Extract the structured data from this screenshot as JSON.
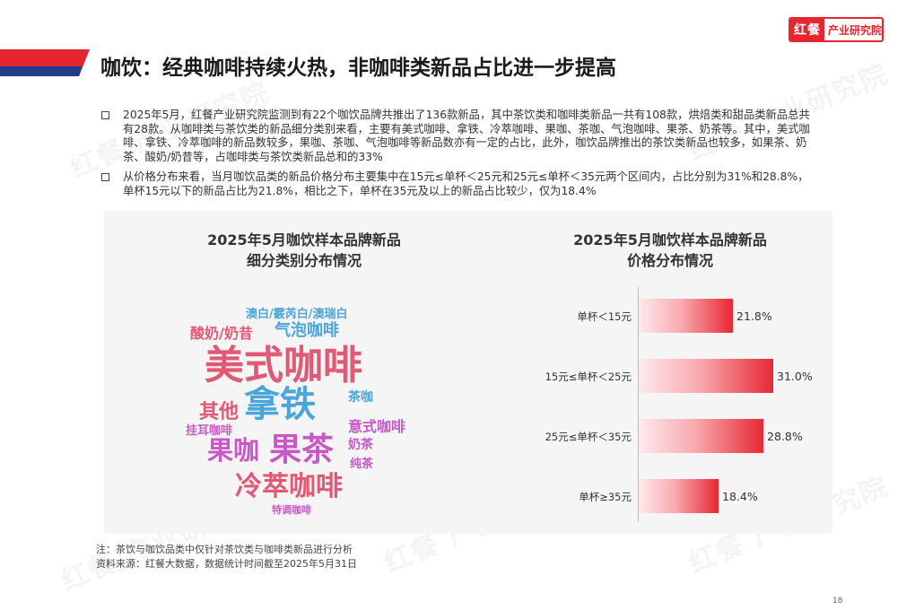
{
  "logo": {
    "brand": "红餐",
    "institute": "产业研究院"
  },
  "header": {
    "title": "咖饮：经典咖啡持续火热，非咖啡类新品占比进一步提高"
  },
  "paragraphs": [
    "2025年5月，红餐产业研究院监测到有22个咖饮品牌共推出了136款新品，其中茶饮类和咖啡类新品一共有108款，烘焙类和甜品类新品总共有28款。从咖啡类与茶饮类的新品细分类别来看，主要有美式咖啡、拿铁、冷萃咖啡、果咖、茶咖、气泡咖啡、果茶、奶茶等。其中，美式咖啡、拿铁、冷萃咖啡的新品数较多，果咖、茶咖、气泡咖啡等新品数亦有一定的占比，此外，咖饮品牌推出的茶饮类新品也较多，如果茶、奶茶、酸奶/奶昔等，占咖啡类与茶饮类新品总和的33%",
    "从价格分布来看，当月咖饮品类的新品价格分布主要集中在15元≤单杯＜25元和25元≤单杯＜35元两个区间内，占比分别为31%和28.8%，单杯15元以下的新品占比为21.8%，相比之下，单杯在35元及以上的新品占比较少，仅为18.4%"
  ],
  "wordcloud": {
    "title_line1": "2025年5月咖饮样本品牌新品",
    "title_line2": "细分类别分布情况",
    "words": [
      {
        "text": "澳白/霰芮白/澳瑞白",
        "color": "#4da6db"
      },
      {
        "text": "酸奶/奶昔",
        "color": "#e05a76"
      },
      {
        "text": "气泡咖啡",
        "color": "#4da6db"
      },
      {
        "text": "美式咖啡",
        "color": "#e05a76"
      },
      {
        "text": "拿铁",
        "color": "#4da6db"
      },
      {
        "text": "其他",
        "color": "#e05a76"
      },
      {
        "text": "茶咖",
        "color": "#4da6db"
      },
      {
        "text": "挂耳咖啡",
        "color": "#c759c7"
      },
      {
        "text": "意式咖啡",
        "color": "#c759c7"
      },
      {
        "text": "果咖",
        "color": "#c759c7"
      },
      {
        "text": "果茶",
        "color": "#c759c7"
      },
      {
        "text": "奶茶",
        "color": "#c759c7"
      },
      {
        "text": "纯茶",
        "color": "#c759c7"
      },
      {
        "text": "冷萃咖啡",
        "color": "#e05a76"
      },
      {
        "text": "特调咖啡",
        "color": "#c759c7"
      }
    ]
  },
  "chart_data": {
    "type": "bar",
    "orientation": "horizontal",
    "title_line1": "2025年5月咖饮样本品牌新品",
    "title_line2": "价格分布情况",
    "categories": [
      "单杯＜15元",
      "15元≤单杯＜25元",
      "25元≤单杯＜35元",
      "单杯≥35元"
    ],
    "values": [
      21.8,
      31.0,
      28.8,
      18.4
    ],
    "value_labels": [
      "21.8%",
      "31.0%",
      "28.8%",
      "18.4%"
    ],
    "unit": "%",
    "xlim": [
      0,
      31.0
    ],
    "colors": {
      "bar_start": "#fdeaec",
      "bar_end": "#e72834"
    }
  },
  "notes": {
    "note": "注：茶饮与咖饮品类中仅针对茶饮类与咖啡类新品进行分析",
    "source": "资料来源：红餐大数据，数据统计时间截至2025年5月31日"
  },
  "page_number": "18",
  "watermark": "红餐 产业研究院",
  "colors": {
    "accent_red": "#e3262f",
    "navy": "#1f3d8a"
  }
}
